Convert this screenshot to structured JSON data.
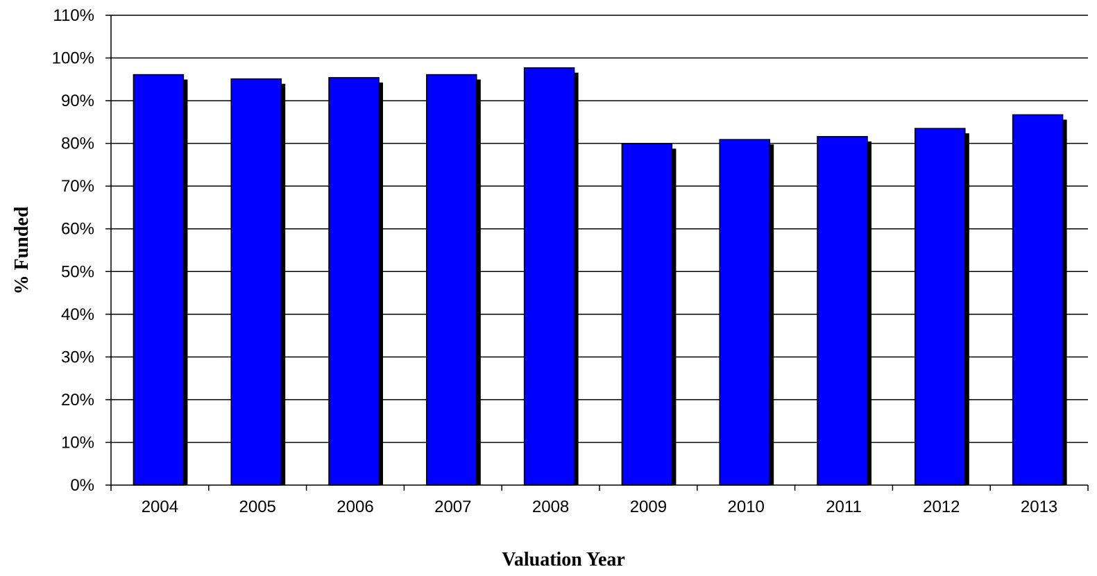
{
  "chart_data": {
    "type": "bar",
    "title": "",
    "xlabel": "Valuation Year",
    "ylabel": "% Funded",
    "categories": [
      "2004",
      "2005",
      "2006",
      "2007",
      "2008",
      "2009",
      "2010",
      "2011",
      "2012",
      "2013"
    ],
    "values": [
      96.1,
      95.1,
      95.4,
      96.1,
      97.7,
      79.9,
      80.9,
      81.6,
      83.5,
      86.7
    ],
    "value_unit": "%",
    "ylim": [
      0,
      110
    ],
    "yticks": [
      "0%",
      "10%",
      "20%",
      "30%",
      "40%",
      "50%",
      "60%",
      "70%",
      "80%",
      "90%",
      "100%",
      "110%"
    ],
    "grid": true,
    "legend": "none",
    "colors": {
      "bar": "#0000FF",
      "bar_shadow": "#000000",
      "grid": "#000000",
      "axis": "#000000"
    }
  }
}
